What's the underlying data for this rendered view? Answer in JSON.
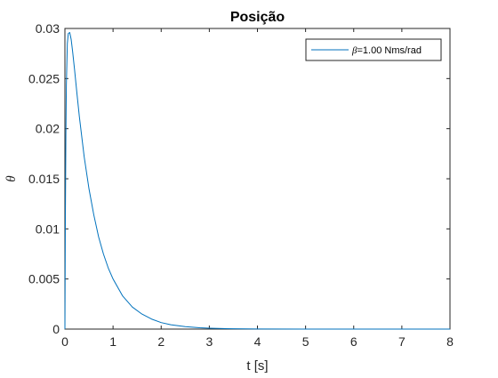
{
  "chart_data": {
    "type": "line",
    "title": "Posição",
    "xlabel": "t [s]",
    "ylabel": "θ",
    "xlim": [
      0,
      8
    ],
    "ylim": [
      0,
      0.03
    ],
    "xticks": [
      0,
      1,
      2,
      3,
      4,
      5,
      6,
      7,
      8
    ],
    "xtick_labels": [
      "0",
      "1",
      "2",
      "3",
      "4",
      "5",
      "6",
      "7",
      "8"
    ],
    "yticks": [
      0,
      0.005,
      0.01,
      0.015,
      0.02,
      0.025,
      0.03
    ],
    "ytick_labels": [
      "0",
      "0.005",
      "0.01",
      "0.015",
      "0.02",
      "0.025",
      "0.03"
    ],
    "grid": false,
    "legend_position": "top-right",
    "legend": {
      "symbol": "β",
      "text": "=1.00 Nms/rad"
    },
    "series": [
      {
        "name": "β=1.00 Nms/rad",
        "color": "#0072BD",
        "x": [
          0,
          0.01,
          0.02,
          0.03,
          0.05,
          0.07,
          0.1,
          0.13,
          0.16,
          0.2,
          0.25,
          0.3,
          0.4,
          0.5,
          0.6,
          0.7,
          0.8,
          0.9,
          1.0,
          1.2,
          1.4,
          1.6,
          1.8,
          2.0,
          2.2,
          2.5,
          2.8,
          3.0,
          3.5,
          4.0,
          5.0,
          6.0,
          7.0,
          8.0
        ],
        "y": [
          0,
          0.0115,
          0.0192,
          0.0243,
          0.0285,
          0.0295,
          0.0296,
          0.0289,
          0.0277,
          0.0259,
          0.0235,
          0.0212,
          0.0172,
          0.014,
          0.0114,
          0.0092,
          0.0075,
          0.0061,
          0.005,
          0.0033,
          0.0022,
          0.0015,
          0.001,
          0.00065,
          0.00043,
          0.00024,
          0.00013,
          9e-05,
          3e-05,
          1e-05,
          0,
          0,
          0,
          0
        ]
      }
    ]
  }
}
